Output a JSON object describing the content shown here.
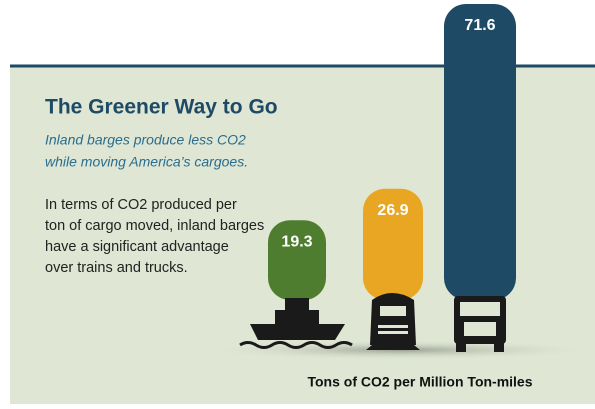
{
  "chart_data": {
    "type": "bar",
    "title": "The Greener Way to Go",
    "subtitle": [
      "Inland barges produce less CO2",
      "while moving America’s cargoes."
    ],
    "body": [
      "In terms of CO2 produced per",
      "ton of cargo moved, inland barges",
      "have a significant advantage",
      "over trains and trucks."
    ],
    "x_label": "Tons of CO2 per Million Ton-miles",
    "categories": [
      null,
      null,
      null
    ],
    "values": [
      19.3,
      26.9,
      71.6
    ],
    "colors": [
      "#4f7d2f",
      "#e9a623",
      "#1e4a66"
    ]
  }
}
